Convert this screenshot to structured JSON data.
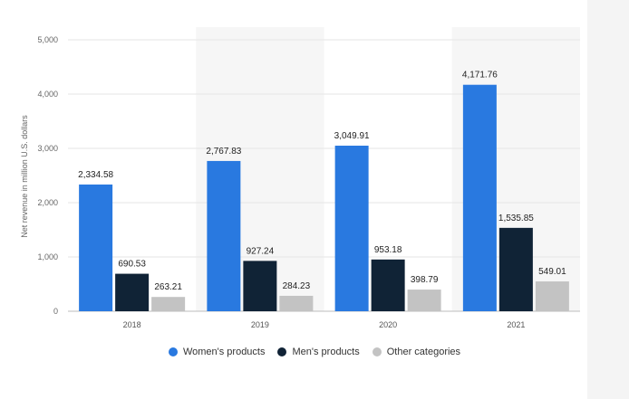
{
  "chart_data": {
    "type": "bar",
    "categories": [
      "2018",
      "2019",
      "2020",
      "2021"
    ],
    "series": [
      {
        "name": "Women's products",
        "values": [
          2334.58,
          2767.83,
          3049.91,
          4171.76
        ],
        "labels": [
          "2,334.58",
          "2,767.83",
          "3,049.91",
          "4,171.76"
        ],
        "color": "#2979e0"
      },
      {
        "name": "Men's products",
        "values": [
          690.53,
          927.24,
          953.18,
          1535.85
        ],
        "labels": [
          "690.53",
          "927.24",
          "953.18",
          "1,535.85"
        ],
        "color": "#102336"
      },
      {
        "name": "Other categories",
        "values": [
          263.21,
          284.23,
          398.79,
          549.01
        ],
        "labels": [
          "263.21",
          "284.23",
          "398.79",
          "549.01"
        ],
        "color": "#c3c3c3"
      }
    ],
    "ylabel": "Net revenue in million U.S. dollars",
    "ylim": [
      0,
      5000
    ],
    "yticks": [
      "0",
      "1,000",
      "2,000",
      "3,000",
      "4,000",
      "5,000"
    ],
    "ytick_values": [
      0,
      1000,
      2000,
      3000,
      4000,
      5000
    ],
    "grid": true,
    "legend_position": "bottom"
  }
}
